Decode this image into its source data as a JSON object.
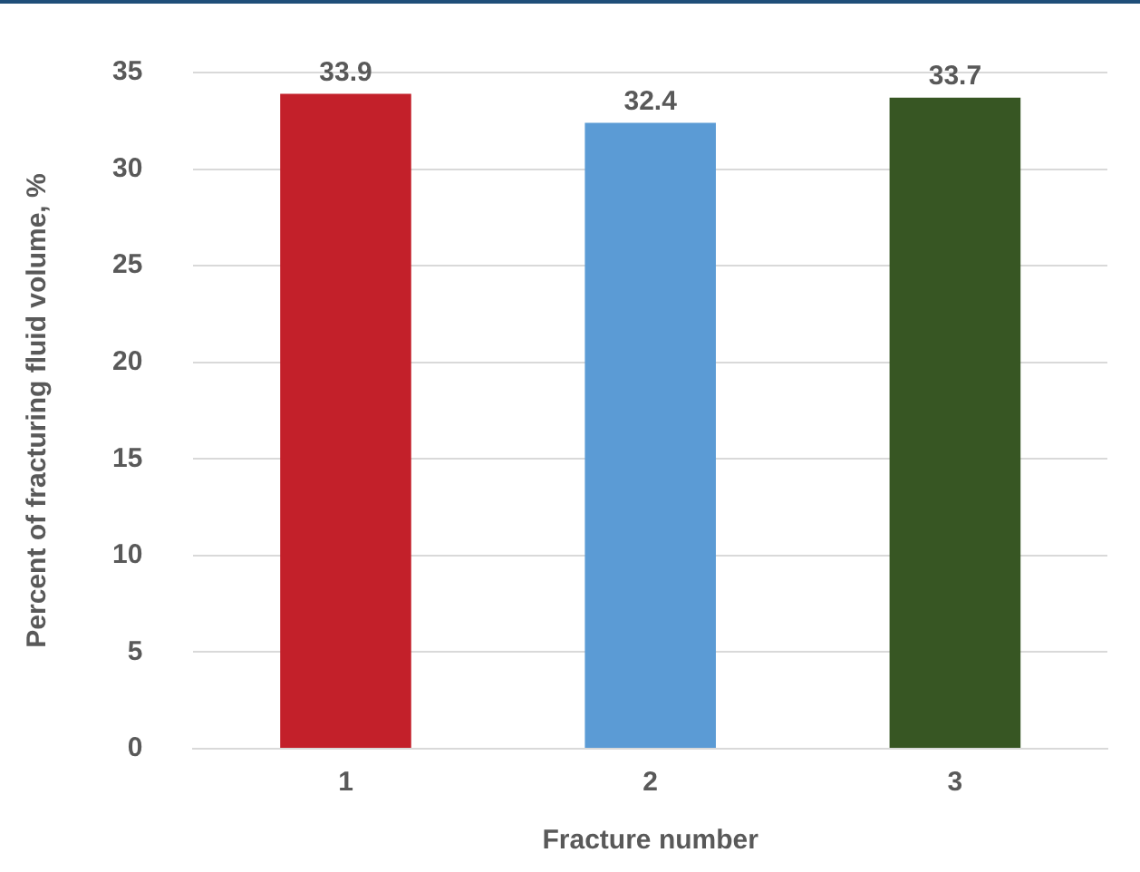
{
  "chart_data": {
    "type": "bar",
    "xlabel": "Fracture number",
    "ylabel": "Percent of fracturing fluid volume, %",
    "categories": [
      "1",
      "2",
      "3"
    ],
    "values": [
      33.9,
      32.4,
      33.7
    ],
    "colors": [
      "#c3202a",
      "#5b9bd5",
      "#375623"
    ],
    "ylim": [
      0,
      35
    ],
    "yticks": [
      0,
      5,
      10,
      15,
      20,
      25,
      30,
      35
    ],
    "grid": "y",
    "data_labels": true,
    "legend": false
  }
}
